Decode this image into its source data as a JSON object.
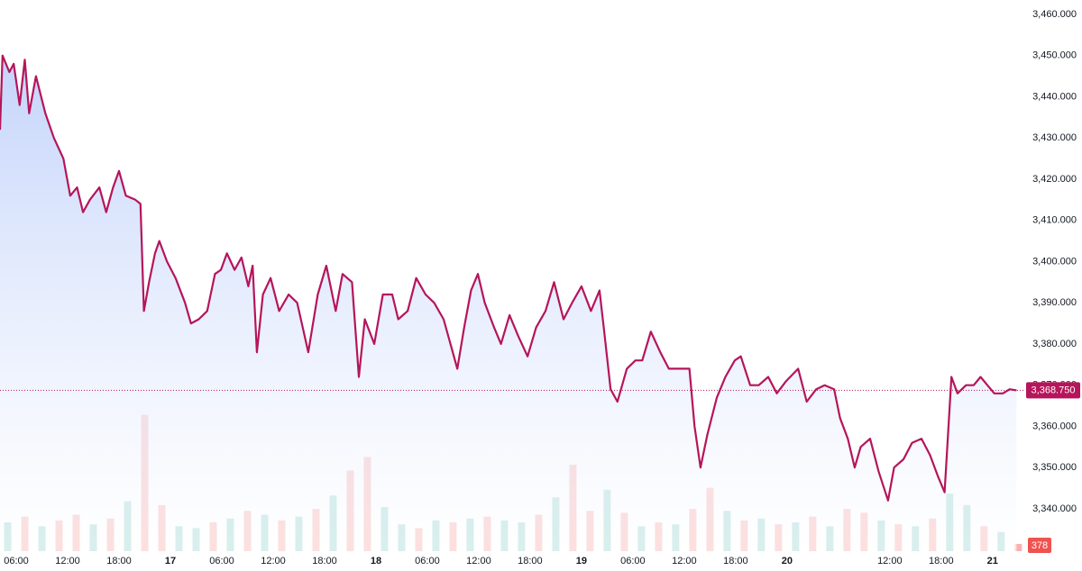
{
  "chart_data": {
    "type": "line",
    "color": "#b5155a",
    "area_top_color": "#c4d4fa",
    "x": [
      4.1,
      4.4,
      5.2,
      5.7,
      6.4,
      7.0,
      7.5,
      8.3,
      9.4,
      10.4,
      11.5,
      12.3,
      13.1,
      13.8,
      14.6,
      15.7,
      16.5,
      17.3,
      18.0,
      18.8,
      19.9,
      20.5,
      20.9,
      21.5,
      22.2,
      22.7,
      23.6,
      24.6,
      25.7,
      26.4,
      27.3,
      28.3,
      29.2,
      29.9,
      30.6,
      31.5,
      32.3,
      33.1,
      33.6,
      34.1,
      34.8,
      35.7,
      36.7,
      37.8,
      38.8,
      40.1,
      41.2,
      42.2,
      43.3,
      44.1,
      45.2,
      46.0,
      46.7,
      47.8,
      48.8,
      49.9,
      50.6,
      51.7,
      52.7,
      53.8,
      54.8,
      55.9,
      56.7,
      57.5,
      58.3,
      59.1,
      59.9,
      60.7,
      61.8,
      62.6,
      63.6,
      64.6,
      65.7,
      66.7,
      67.8,
      68.8,
      69.9,
      70.9,
      72.0,
      73.1,
      74.1,
      74.6,
      75.4,
      76.2,
      77.3,
      78.3,
      79.1,
      80.1,
      81.2,
      82.2,
      83.3,
      84.6,
      85.2,
      85.9,
      86.7,
      87.8,
      88.8,
      89.9,
      90.6,
      91.7,
      92.7,
      93.8,
      94.8,
      95.9,
      97.3,
      98.3,
      99.4,
      100.4,
      101.5,
      102.2,
      103.1,
      103.9,
      104.6,
      105.7,
      106.7,
      107.8,
      108.5,
      109.6,
      110.6,
      111.7,
      112.7,
      113.6,
      114.4,
      115.2,
      115.9,
      116.9,
      117.8,
      118.6,
      119.4,
      120.2,
      121.2,
      122.0,
      122.8
    ],
    "values": [
      3432,
      3450,
      3446,
      3448,
      3438,
      3449,
      3436,
      3445,
      3436,
      3430,
      3425,
      3416,
      3418,
      3412,
      3415,
      3418,
      3412,
      3418,
      3422,
      3416,
      3415,
      3414,
      3388,
      3395,
      3402,
      3405,
      3400,
      3396,
      3390,
      3385,
      3386,
      3388,
      3397,
      3398,
      3402,
      3398,
      3401,
      3394,
      3399,
      3378,
      3392,
      3396,
      3388,
      3392,
      3390,
      3378,
      3392,
      3399,
      3388,
      3397,
      3395,
      3372,
      3386,
      3380,
      3392,
      3392,
      3386,
      3388,
      3396,
      3392,
      3390,
      3386,
      3380,
      3374,
      3384,
      3393,
      3397,
      3390,
      3384,
      3380,
      3387,
      3382,
      3377,
      3384,
      3388,
      3395,
      3386,
      3390,
      3394,
      3388,
      3393,
      3384,
      3369,
      3366,
      3374,
      3376,
      3376,
      3383,
      3378,
      3374,
      3374,
      3374,
      3360,
      3350,
      3358,
      3367,
      3372,
      3376,
      3377,
      3370,
      3370,
      3372,
      3368,
      3371,
      3374,
      3366,
      3369,
      3370,
      3369,
      3362,
      3357,
      3350,
      3355,
      3357,
      3349,
      3342,
      3350,
      3352,
      3356,
      3357,
      3353,
      3348,
      3344,
      3372,
      3368,
      3370,
      3370,
      3372,
      3370,
      3368,
      3368,
      3369,
      3368.75
    ],
    "xlim": [
      4.1,
      123.6
    ],
    "ylim": [
      3329.7,
      3463.5
    ],
    "yticks": [
      {
        "value": 3340,
        "label": "3,340.000"
      },
      {
        "value": 3350,
        "label": "3,350.000"
      },
      {
        "value": 3360,
        "label": "3,360.000"
      },
      {
        "value": 3370,
        "label": "3,370.000"
      },
      {
        "value": 3380,
        "label": "3,380.000"
      },
      {
        "value": 3390,
        "label": "3,390.000"
      },
      {
        "value": 3400,
        "label": "3,400.000"
      },
      {
        "value": 3410,
        "label": "3,410.000"
      },
      {
        "value": 3420,
        "label": "3,420.000"
      },
      {
        "value": 3430,
        "label": "3,430.000"
      },
      {
        "value": 3440,
        "label": "3,440.000"
      },
      {
        "value": 3450,
        "label": "3,450.000"
      },
      {
        "value": 3460,
        "label": "3,460.000"
      }
    ],
    "xticks": [
      {
        "value": 6,
        "label": "06:00"
      },
      {
        "value": 12,
        "label": "12:00"
      },
      {
        "value": 18,
        "label": "18:00"
      },
      {
        "value": 24,
        "label": "17"
      },
      {
        "value": 30,
        "label": "06:00"
      },
      {
        "value": 36,
        "label": "12:00"
      },
      {
        "value": 42,
        "label": "18:00"
      },
      {
        "value": 48,
        "label": "18"
      },
      {
        "value": 54,
        "label": "06:00"
      },
      {
        "value": 60,
        "label": "12:00"
      },
      {
        "value": 66,
        "label": "18:00"
      },
      {
        "value": 72,
        "label": "19"
      },
      {
        "value": 78,
        "label": "06:00"
      },
      {
        "value": 84,
        "label": "12:00"
      },
      {
        "value": 90,
        "label": "18:00"
      },
      {
        "value": 96,
        "label": "20"
      },
      {
        "value": 108,
        "label": "12:00"
      },
      {
        "value": 114,
        "label": "18:00"
      },
      {
        "value": 120,
        "label": "21"
      }
    ],
    "last_price": {
      "value": 3368.75,
      "label": "3,368.750"
    },
    "volume": {
      "vlim": [
        0,
        7500
      ],
      "x": [
        5,
        7,
        9,
        11,
        13,
        15,
        17,
        19,
        21,
        23,
        25,
        27,
        29,
        31,
        33,
        35,
        37,
        39,
        41,
        43,
        45,
        47,
        49,
        51,
        53,
        55,
        57,
        59,
        61,
        63,
        65,
        67,
        69,
        71,
        73,
        75,
        77,
        79,
        81,
        83,
        85,
        87,
        89,
        91,
        93,
        95,
        97,
        99,
        101,
        103,
        105,
        107,
        109,
        111,
        113,
        115,
        117,
        119,
        121,
        123
      ],
      "values": [
        1500,
        1800,
        1300,
        1600,
        1900,
        1400,
        1700,
        2600,
        7100,
        2400,
        1300,
        1200,
        1500,
        1700,
        2100,
        1900,
        1600,
        1800,
        2200,
        2900,
        4200,
        4900,
        2300,
        1400,
        1200,
        1600,
        1500,
        1700,
        1800,
        1600,
        1500,
        1900,
        2800,
        4500,
        2100,
        3200,
        2000,
        1300,
        1500,
        1400,
        2200,
        3300,
        2100,
        1600,
        1700,
        1400,
        1500,
        1800,
        1300,
        2200,
        2000,
        1600,
        1400,
        1300,
        1700,
        3000,
        2400,
        1300,
        1000,
        378
      ],
      "colors": [
        "#26a69a",
        "#ef5350",
        "#26a69a",
        "#ef5350",
        "#ef5350",
        "#26a69a",
        "#ef5350",
        "#26a69a",
        "#ef5350",
        "#ef5350",
        "#26a69a",
        "#26a69a",
        "#ef5350",
        "#26a69a",
        "#ef5350",
        "#26a69a",
        "#ef5350",
        "#26a69a",
        "#ef5350",
        "#26a69a",
        "#ef5350",
        "#ef5350",
        "#26a69a",
        "#26a69a",
        "#ef5350",
        "#26a69a",
        "#ef5350",
        "#26a69a",
        "#ef5350",
        "#26a69a",
        "#26a69a",
        "#ef5350",
        "#26a69a",
        "#ef5350",
        "#ef5350",
        "#26a69a",
        "#ef5350",
        "#26a69a",
        "#ef5350",
        "#26a69a",
        "#ef5350",
        "#ef5350",
        "#26a69a",
        "#ef5350",
        "#26a69a",
        "#ef5350",
        "#26a69a",
        "#ef5350",
        "#26a69a",
        "#ef5350",
        "#ef5350",
        "#26a69a",
        "#ef5350",
        "#26a69a",
        "#ef5350",
        "#26a69a",
        "#26a69a",
        "#ef5350",
        "#26a69a",
        "#ef5350"
      ]
    }
  }
}
